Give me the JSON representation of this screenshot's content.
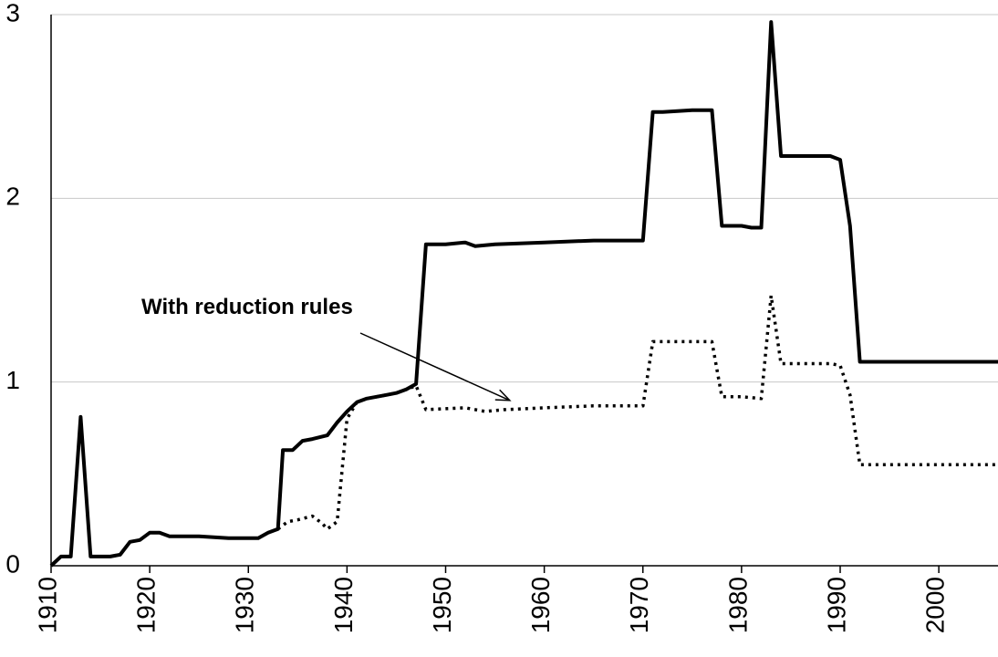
{
  "chart_data": {
    "type": "line",
    "title": "",
    "xlabel": "",
    "ylabel": "",
    "xlim": [
      1910,
      2006
    ],
    "ylim": [
      0,
      3
    ],
    "grid": true,
    "x_ticks": [
      1910,
      1920,
      1930,
      1940,
      1950,
      1960,
      1970,
      1980,
      1990,
      2000
    ],
    "y_ticks": [
      0,
      1,
      2,
      3
    ],
    "annotation": {
      "text": "With reduction rules",
      "arrow_to": [
        1956.5,
        0.9
      ]
    },
    "series": [
      {
        "style": "solid",
        "color": "#000000",
        "points": [
          [
            1910,
            0.0
          ],
          [
            1911,
            0.05
          ],
          [
            1912,
            0.05
          ],
          [
            1913,
            0.81
          ],
          [
            1914,
            0.05
          ],
          [
            1916,
            0.05
          ],
          [
            1917,
            0.06
          ],
          [
            1918,
            0.13
          ],
          [
            1919,
            0.14
          ],
          [
            1920,
            0.18
          ],
          [
            1921,
            0.18
          ],
          [
            1922,
            0.16
          ],
          [
            1925,
            0.16
          ],
          [
            1928,
            0.15
          ],
          [
            1931,
            0.15
          ],
          [
            1932,
            0.18
          ],
          [
            1933,
            0.2
          ],
          [
            1933.5,
            0.63
          ],
          [
            1934.5,
            0.63
          ],
          [
            1935.5,
            0.68
          ],
          [
            1936.5,
            0.69
          ],
          [
            1938,
            0.71
          ],
          [
            1939,
            0.78
          ],
          [
            1940,
            0.84
          ],
          [
            1941,
            0.89
          ],
          [
            1942,
            0.91
          ],
          [
            1943,
            0.92
          ],
          [
            1944,
            0.93
          ],
          [
            1945,
            0.94
          ],
          [
            1946,
            0.96
          ],
          [
            1947,
            0.99
          ],
          [
            1948,
            1.75
          ],
          [
            1950,
            1.75
          ],
          [
            1952,
            1.76
          ],
          [
            1953,
            1.74
          ],
          [
            1955,
            1.75
          ],
          [
            1960,
            1.76
          ],
          [
            1965,
            1.77
          ],
          [
            1970,
            1.77
          ],
          [
            1971,
            2.47
          ],
          [
            1972,
            2.47
          ],
          [
            1975,
            2.48
          ],
          [
            1977,
            2.48
          ],
          [
            1978,
            1.85
          ],
          [
            1980,
            1.85
          ],
          [
            1981,
            1.84
          ],
          [
            1982,
            1.84
          ],
          [
            1983,
            2.96
          ],
          [
            1984,
            2.23
          ],
          [
            1986,
            2.23
          ],
          [
            1989,
            2.23
          ],
          [
            1990,
            2.21
          ],
          [
            1991,
            1.85
          ],
          [
            1992,
            1.11
          ],
          [
            2006,
            1.11
          ]
        ]
      },
      {
        "style": "dotted",
        "color": "#000000",
        "points": [
          [
            1933,
            0.2
          ],
          [
            1934,
            0.24
          ],
          [
            1935,
            0.25
          ],
          [
            1936.5,
            0.27
          ],
          [
            1937.5,
            0.23
          ],
          [
            1938,
            0.2
          ],
          [
            1939,
            0.24
          ],
          [
            1940,
            0.8
          ],
          [
            1941,
            0.89
          ],
          [
            1942,
            0.91
          ],
          [
            1943,
            0.92
          ],
          [
            1944,
            0.93
          ],
          [
            1945,
            0.94
          ],
          [
            1946,
            0.96
          ],
          [
            1947,
            0.98
          ],
          [
            1948,
            0.85
          ],
          [
            1952,
            0.86
          ],
          [
            1954,
            0.84
          ],
          [
            1956,
            0.85
          ],
          [
            1960,
            0.86
          ],
          [
            1965,
            0.87
          ],
          [
            1970,
            0.87
          ],
          [
            1971,
            1.22
          ],
          [
            1977,
            1.22
          ],
          [
            1978,
            0.92
          ],
          [
            1980,
            0.92
          ],
          [
            1982,
            0.91
          ],
          [
            1983,
            1.47
          ],
          [
            1984,
            1.1
          ],
          [
            1989,
            1.1
          ],
          [
            1990,
            1.09
          ],
          [
            1991,
            0.93
          ],
          [
            1992,
            0.55
          ],
          [
            2006,
            0.55
          ]
        ]
      }
    ]
  }
}
